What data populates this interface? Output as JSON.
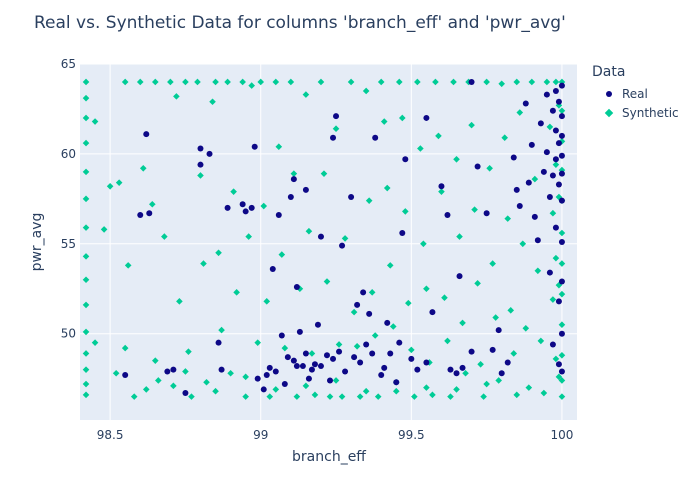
{
  "chart_data": {
    "type": "scatter",
    "title": "Real vs. Synthetic Data for columns 'branch_eff' and 'pwr_avg'",
    "xlabel": "branch_eff",
    "ylabel": "pwr_avg",
    "xlim": [
      98.4,
      100.05
    ],
    "ylim": [
      45.2,
      65
    ],
    "xticks": [
      98.5,
      99,
      99.5,
      100
    ],
    "xtick_labels": [
      "98.5",
      "99",
      "99.5",
      "100"
    ],
    "yticks": [
      50,
      55,
      60,
      65
    ],
    "ytick_labels": [
      "50",
      "55",
      "60",
      "65"
    ],
    "grid": true,
    "legend_title": "Data",
    "legend_position": "right",
    "series": [
      {
        "name": "Real",
        "marker": "circle",
        "color": "#0d0887",
        "points": [
          [
            98.55,
            47.7
          ],
          [
            98.6,
            56.6
          ],
          [
            98.62,
            61.1
          ],
          [
            98.63,
            56.7
          ],
          [
            98.69,
            47.9
          ],
          [
            98.71,
            48.0
          ],
          [
            98.75,
            46.7
          ],
          [
            98.8,
            59.4
          ],
          [
            98.8,
            60.3
          ],
          [
            98.83,
            60.0
          ],
          [
            98.86,
            49.5
          ],
          [
            98.87,
            48.0
          ],
          [
            98.89,
            57.0
          ],
          [
            98.94,
            57.2
          ],
          [
            98.95,
            56.8
          ],
          [
            98.97,
            57.0
          ],
          [
            98.98,
            60.4
          ],
          [
            98.99,
            47.5
          ],
          [
            99.01,
            46.9
          ],
          [
            99.02,
            47.7
          ],
          [
            99.03,
            48.1
          ],
          [
            99.04,
            53.6
          ],
          [
            99.05,
            47.9
          ],
          [
            99.06,
            56.6
          ],
          [
            99.07,
            49.9
          ],
          [
            99.08,
            47.2
          ],
          [
            99.09,
            48.7
          ],
          [
            99.1,
            57.6
          ],
          [
            99.11,
            58.6
          ],
          [
            99.11,
            48.5
          ],
          [
            99.12,
            48.2
          ],
          [
            99.13,
            50.1
          ],
          [
            99.14,
            48.2
          ],
          [
            99.15,
            58.0
          ],
          [
            99.15,
            48.9
          ],
          [
            99.16,
            47.5
          ],
          [
            99.17,
            48.0
          ],
          [
            99.18,
            48.3
          ],
          [
            99.19,
            50.5
          ],
          [
            99.2,
            55.4
          ],
          [
            99.2,
            48.2
          ],
          [
            99.22,
            48.8
          ],
          [
            99.23,
            47.4
          ],
          [
            99.24,
            60.9
          ],
          [
            99.24,
            48.6
          ],
          [
            99.26,
            49.0
          ],
          [
            99.27,
            54.9
          ],
          [
            99.28,
            47.9
          ],
          [
            99.3,
            57.6
          ],
          [
            99.31,
            48.7
          ],
          [
            99.32,
            51.6
          ],
          [
            99.33,
            48.4
          ],
          [
            99.34,
            52.3
          ],
          [
            99.35,
            49.4
          ],
          [
            99.36,
            51.1
          ],
          [
            99.37,
            48.9
          ],
          [
            99.38,
            60.9
          ],
          [
            99.4,
            47.7
          ],
          [
            99.41,
            48.1
          ],
          [
            99.42,
            50.6
          ],
          [
            99.43,
            48.9
          ],
          [
            99.45,
            47.3
          ],
          [
            99.46,
            49.5
          ],
          [
            99.48,
            59.7
          ],
          [
            99.5,
            48.6
          ],
          [
            99.52,
            48.0
          ],
          [
            99.55,
            48.4
          ],
          [
            99.57,
            51.2
          ],
          [
            99.6,
            58.2
          ],
          [
            99.62,
            56.6
          ],
          [
            99.63,
            48.0
          ],
          [
            99.65,
            47.8
          ],
          [
            99.67,
            48.1
          ],
          [
            99.7,
            49.0
          ],
          [
            99.72,
            59.3
          ],
          [
            99.75,
            56.7
          ],
          [
            99.77,
            49.1
          ],
          [
            99.79,
            50.2
          ],
          [
            99.8,
            47.8
          ],
          [
            99.82,
            48.4
          ],
          [
            99.84,
            59.8
          ],
          [
            99.85,
            58.0
          ],
          [
            99.86,
            57.1
          ],
          [
            99.88,
            62.8
          ],
          [
            99.89,
            58.4
          ],
          [
            99.9,
            60.5
          ],
          [
            99.91,
            56.5
          ],
          [
            99.92,
            55.2
          ],
          [
            99.93,
            61.7
          ],
          [
            99.94,
            59.0
          ],
          [
            99.95,
            63.3
          ],
          [
            99.95,
            60.1
          ],
          [
            99.96,
            57.6
          ],
          [
            99.96,
            53.4
          ],
          [
            99.97,
            62.4
          ],
          [
            99.97,
            58.8
          ],
          [
            99.97,
            49.4
          ],
          [
            99.98,
            63.5
          ],
          [
            99.98,
            61.3
          ],
          [
            99.98,
            59.7
          ],
          [
            99.98,
            55.9
          ],
          [
            99.99,
            62.9
          ],
          [
            99.99,
            60.6
          ],
          [
            99.99,
            58.3
          ],
          [
            99.99,
            51.8
          ],
          [
            99.99,
            48.3
          ],
          [
            100.0,
            63.8
          ],
          [
            100.0,
            62.1
          ],
          [
            100.0,
            61.0
          ],
          [
            100.0,
            59.9
          ],
          [
            100.0,
            58.9
          ],
          [
            100.0,
            57.4
          ],
          [
            100.0,
            55.1
          ],
          [
            100.0,
            52.9
          ],
          [
            100.0,
            50.0
          ],
          [
            100.0,
            47.9
          ],
          [
            99.25,
            62.1
          ],
          [
            99.55,
            62.0
          ],
          [
            99.7,
            64.0
          ],
          [
            99.12,
            52.6
          ],
          [
            99.47,
            55.6
          ],
          [
            99.66,
            53.2
          ]
        ]
      },
      {
        "name": "Synthetic",
        "marker": "diamond",
        "color": "#00cc96",
        "points": [
          [
            98.42,
            64.0
          ],
          [
            98.42,
            63.1
          ],
          [
            98.42,
            62.0
          ],
          [
            98.42,
            60.6
          ],
          [
            98.42,
            59.0
          ],
          [
            98.42,
            57.5
          ],
          [
            98.42,
            55.9
          ],
          [
            98.42,
            54.3
          ],
          [
            98.42,
            53.0
          ],
          [
            98.42,
            51.6
          ],
          [
            98.42,
            50.1
          ],
          [
            98.42,
            48.9
          ],
          [
            98.42,
            48.0
          ],
          [
            98.42,
            47.2
          ],
          [
            98.42,
            46.6
          ],
          [
            98.45,
            61.8
          ],
          [
            98.45,
            49.5
          ],
          [
            98.48,
            55.8
          ],
          [
            98.5,
            58.2
          ],
          [
            98.52,
            47.8
          ],
          [
            98.53,
            58.4
          ],
          [
            98.55,
            64.0
          ],
          [
            98.56,
            53.8
          ],
          [
            98.58,
            46.5
          ],
          [
            98.6,
            64.0
          ],
          [
            98.61,
            59.2
          ],
          [
            98.62,
            46.9
          ],
          [
            98.64,
            57.2
          ],
          [
            98.65,
            64.0
          ],
          [
            98.66,
            47.4
          ],
          [
            98.68,
            55.4
          ],
          [
            98.7,
            64.0
          ],
          [
            98.71,
            47.1
          ],
          [
            98.72,
            63.2
          ],
          [
            98.73,
            51.8
          ],
          [
            98.75,
            64.0
          ],
          [
            98.76,
            49.0
          ],
          [
            98.77,
            46.5
          ],
          [
            98.79,
            64.0
          ],
          [
            98.8,
            58.8
          ],
          [
            98.81,
            53.9
          ],
          [
            98.82,
            47.3
          ],
          [
            98.84,
            62.9
          ],
          [
            98.85,
            64.0
          ],
          [
            98.86,
            54.5
          ],
          [
            98.87,
            50.2
          ],
          [
            98.89,
            64.0
          ],
          [
            98.9,
            47.8
          ],
          [
            98.91,
            57.9
          ],
          [
            98.92,
            52.3
          ],
          [
            98.94,
            64.0
          ],
          [
            98.95,
            46.5
          ],
          [
            98.96,
            55.4
          ],
          [
            98.97,
            63.8
          ],
          [
            98.99,
            49.5
          ],
          [
            99.0,
            64.0
          ],
          [
            99.01,
            57.1
          ],
          [
            99.02,
            51.8
          ],
          [
            99.03,
            46.5
          ],
          [
            99.05,
            64.0
          ],
          [
            99.06,
            60.4
          ],
          [
            99.07,
            54.4
          ],
          [
            99.08,
            49.2
          ],
          [
            99.1,
            64.0
          ],
          [
            99.11,
            58.9
          ],
          [
            99.12,
            46.5
          ],
          [
            99.13,
            52.5
          ],
          [
            99.15,
            63.3
          ],
          [
            99.16,
            55.7
          ],
          [
            99.17,
            48.9
          ],
          [
            99.18,
            46.6
          ],
          [
            99.2,
            64.0
          ],
          [
            99.21,
            58.9
          ],
          [
            99.22,
            52.9
          ],
          [
            99.23,
            46.5
          ],
          [
            99.25,
            61.4
          ],
          [
            99.26,
            49.4
          ],
          [
            99.27,
            46.5
          ],
          [
            99.28,
            55.3
          ],
          [
            99.3,
            64.0
          ],
          [
            99.31,
            51.2
          ],
          [
            99.32,
            49.3
          ],
          [
            99.33,
            46.5
          ],
          [
            99.35,
            63.5
          ],
          [
            99.36,
            57.4
          ],
          [
            99.37,
            52.3
          ],
          [
            99.38,
            49.9
          ],
          [
            99.39,
            46.5
          ],
          [
            99.4,
            64.0
          ],
          [
            99.41,
            61.8
          ],
          [
            99.42,
            58.1
          ],
          [
            99.43,
            53.8
          ],
          [
            99.44,
            50.4
          ],
          [
            99.45,
            46.8
          ],
          [
            99.46,
            64.0
          ],
          [
            99.47,
            62.0
          ],
          [
            99.48,
            56.8
          ],
          [
            99.49,
            51.7
          ],
          [
            99.5,
            49.1
          ],
          [
            99.51,
            46.5
          ],
          [
            99.52,
            64.0
          ],
          [
            99.53,
            60.3
          ],
          [
            99.54,
            55.0
          ],
          [
            99.55,
            52.5
          ],
          [
            99.56,
            48.4
          ],
          [
            99.57,
            46.6
          ],
          [
            99.58,
            64.0
          ],
          [
            99.59,
            61.0
          ],
          [
            99.6,
            57.9
          ],
          [
            99.61,
            52.0
          ],
          [
            99.62,
            49.6
          ],
          [
            99.63,
            46.5
          ],
          [
            99.64,
            64.0
          ],
          [
            99.65,
            59.7
          ],
          [
            99.66,
            55.4
          ],
          [
            99.67,
            50.6
          ],
          [
            99.68,
            47.8
          ],
          [
            99.69,
            64.0
          ],
          [
            99.7,
            61.6
          ],
          [
            99.71,
            56.9
          ],
          [
            99.72,
            52.8
          ],
          [
            99.73,
            48.3
          ],
          [
            99.74,
            46.5
          ],
          [
            99.75,
            64.0
          ],
          [
            99.76,
            59.2
          ],
          [
            99.77,
            53.9
          ],
          [
            99.78,
            50.9
          ],
          [
            99.79,
            47.4
          ],
          [
            99.8,
            63.9
          ],
          [
            99.81,
            60.9
          ],
          [
            99.82,
            56.4
          ],
          [
            99.83,
            51.3
          ],
          [
            99.84,
            48.9
          ],
          [
            99.85,
            64.0
          ],
          [
            99.86,
            62.3
          ],
          [
            99.87,
            55.0
          ],
          [
            99.88,
            50.3
          ],
          [
            99.89,
            47.0
          ],
          [
            99.9,
            64.0
          ],
          [
            99.91,
            58.6
          ],
          [
            99.92,
            53.5
          ],
          [
            99.93,
            49.6
          ],
          [
            99.94,
            46.7
          ],
          [
            99.95,
            64.0
          ],
          [
            99.96,
            61.5
          ],
          [
            99.97,
            56.7
          ],
          [
            99.97,
            51.9
          ],
          [
            99.98,
            64.0
          ],
          [
            99.98,
            59.4
          ],
          [
            99.98,
            54.2
          ],
          [
            99.98,
            48.6
          ],
          [
            99.99,
            62.7
          ],
          [
            99.99,
            57.6
          ],
          [
            99.99,
            52.7
          ],
          [
            99.99,
            47.6
          ],
          [
            100.0,
            64.0
          ],
          [
            100.0,
            62.4
          ],
          [
            100.0,
            60.7
          ],
          [
            100.0,
            59.1
          ],
          [
            100.0,
            57.4
          ],
          [
            100.0,
            55.6
          ],
          [
            100.0,
            53.9
          ],
          [
            100.0,
            52.2
          ],
          [
            100.0,
            50.5
          ],
          [
            100.0,
            48.8
          ],
          [
            100.0,
            47.4
          ],
          [
            100.0,
            46.5
          ],
          [
            99.35,
            46.8
          ],
          [
            99.45,
            47.3
          ],
          [
            99.55,
            47.0
          ],
          [
            99.65,
            46.9
          ],
          [
            99.75,
            47.2
          ],
          [
            99.85,
            46.6
          ],
          [
            99.25,
            47.4
          ],
          [
            99.15,
            47.1
          ],
          [
            99.05,
            46.9
          ],
          [
            98.95,
            47.6
          ],
          [
            98.85,
            46.8
          ],
          [
            98.75,
            47.9
          ],
          [
            98.65,
            48.5
          ],
          [
            98.55,
            49.2
          ]
        ]
      }
    ]
  }
}
